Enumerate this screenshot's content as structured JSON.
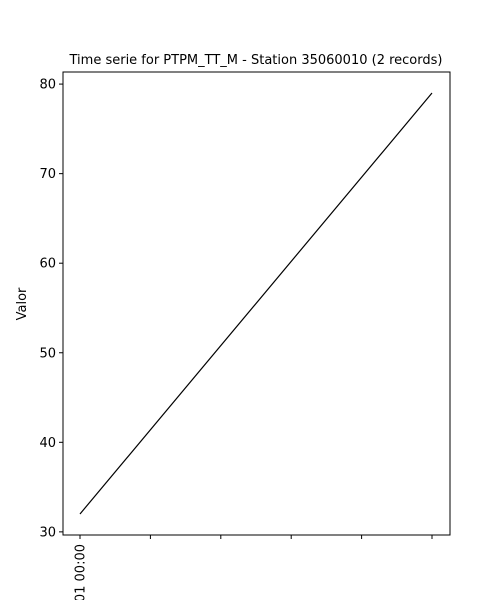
{
  "chart_data": {
    "type": "line",
    "title": "Time serie for PTPM_TT_M - Station 35060010 (2 records)",
    "xlabel": "",
    "ylabel": "Valor",
    "x_tick_labels": [
      "01 00:00",
      "",
      "",
      "",
      "",
      ""
    ],
    "y_ticks": [
      30,
      40,
      50,
      60,
      70,
      80
    ],
    "ylim": [
      29.65,
      81.35
    ],
    "grid": false,
    "series": [
      {
        "points": [
          {
            "x": 0,
            "y": 32
          },
          {
            "x": 1,
            "y": 79
          }
        ],
        "color": "#000000"
      }
    ]
  }
}
